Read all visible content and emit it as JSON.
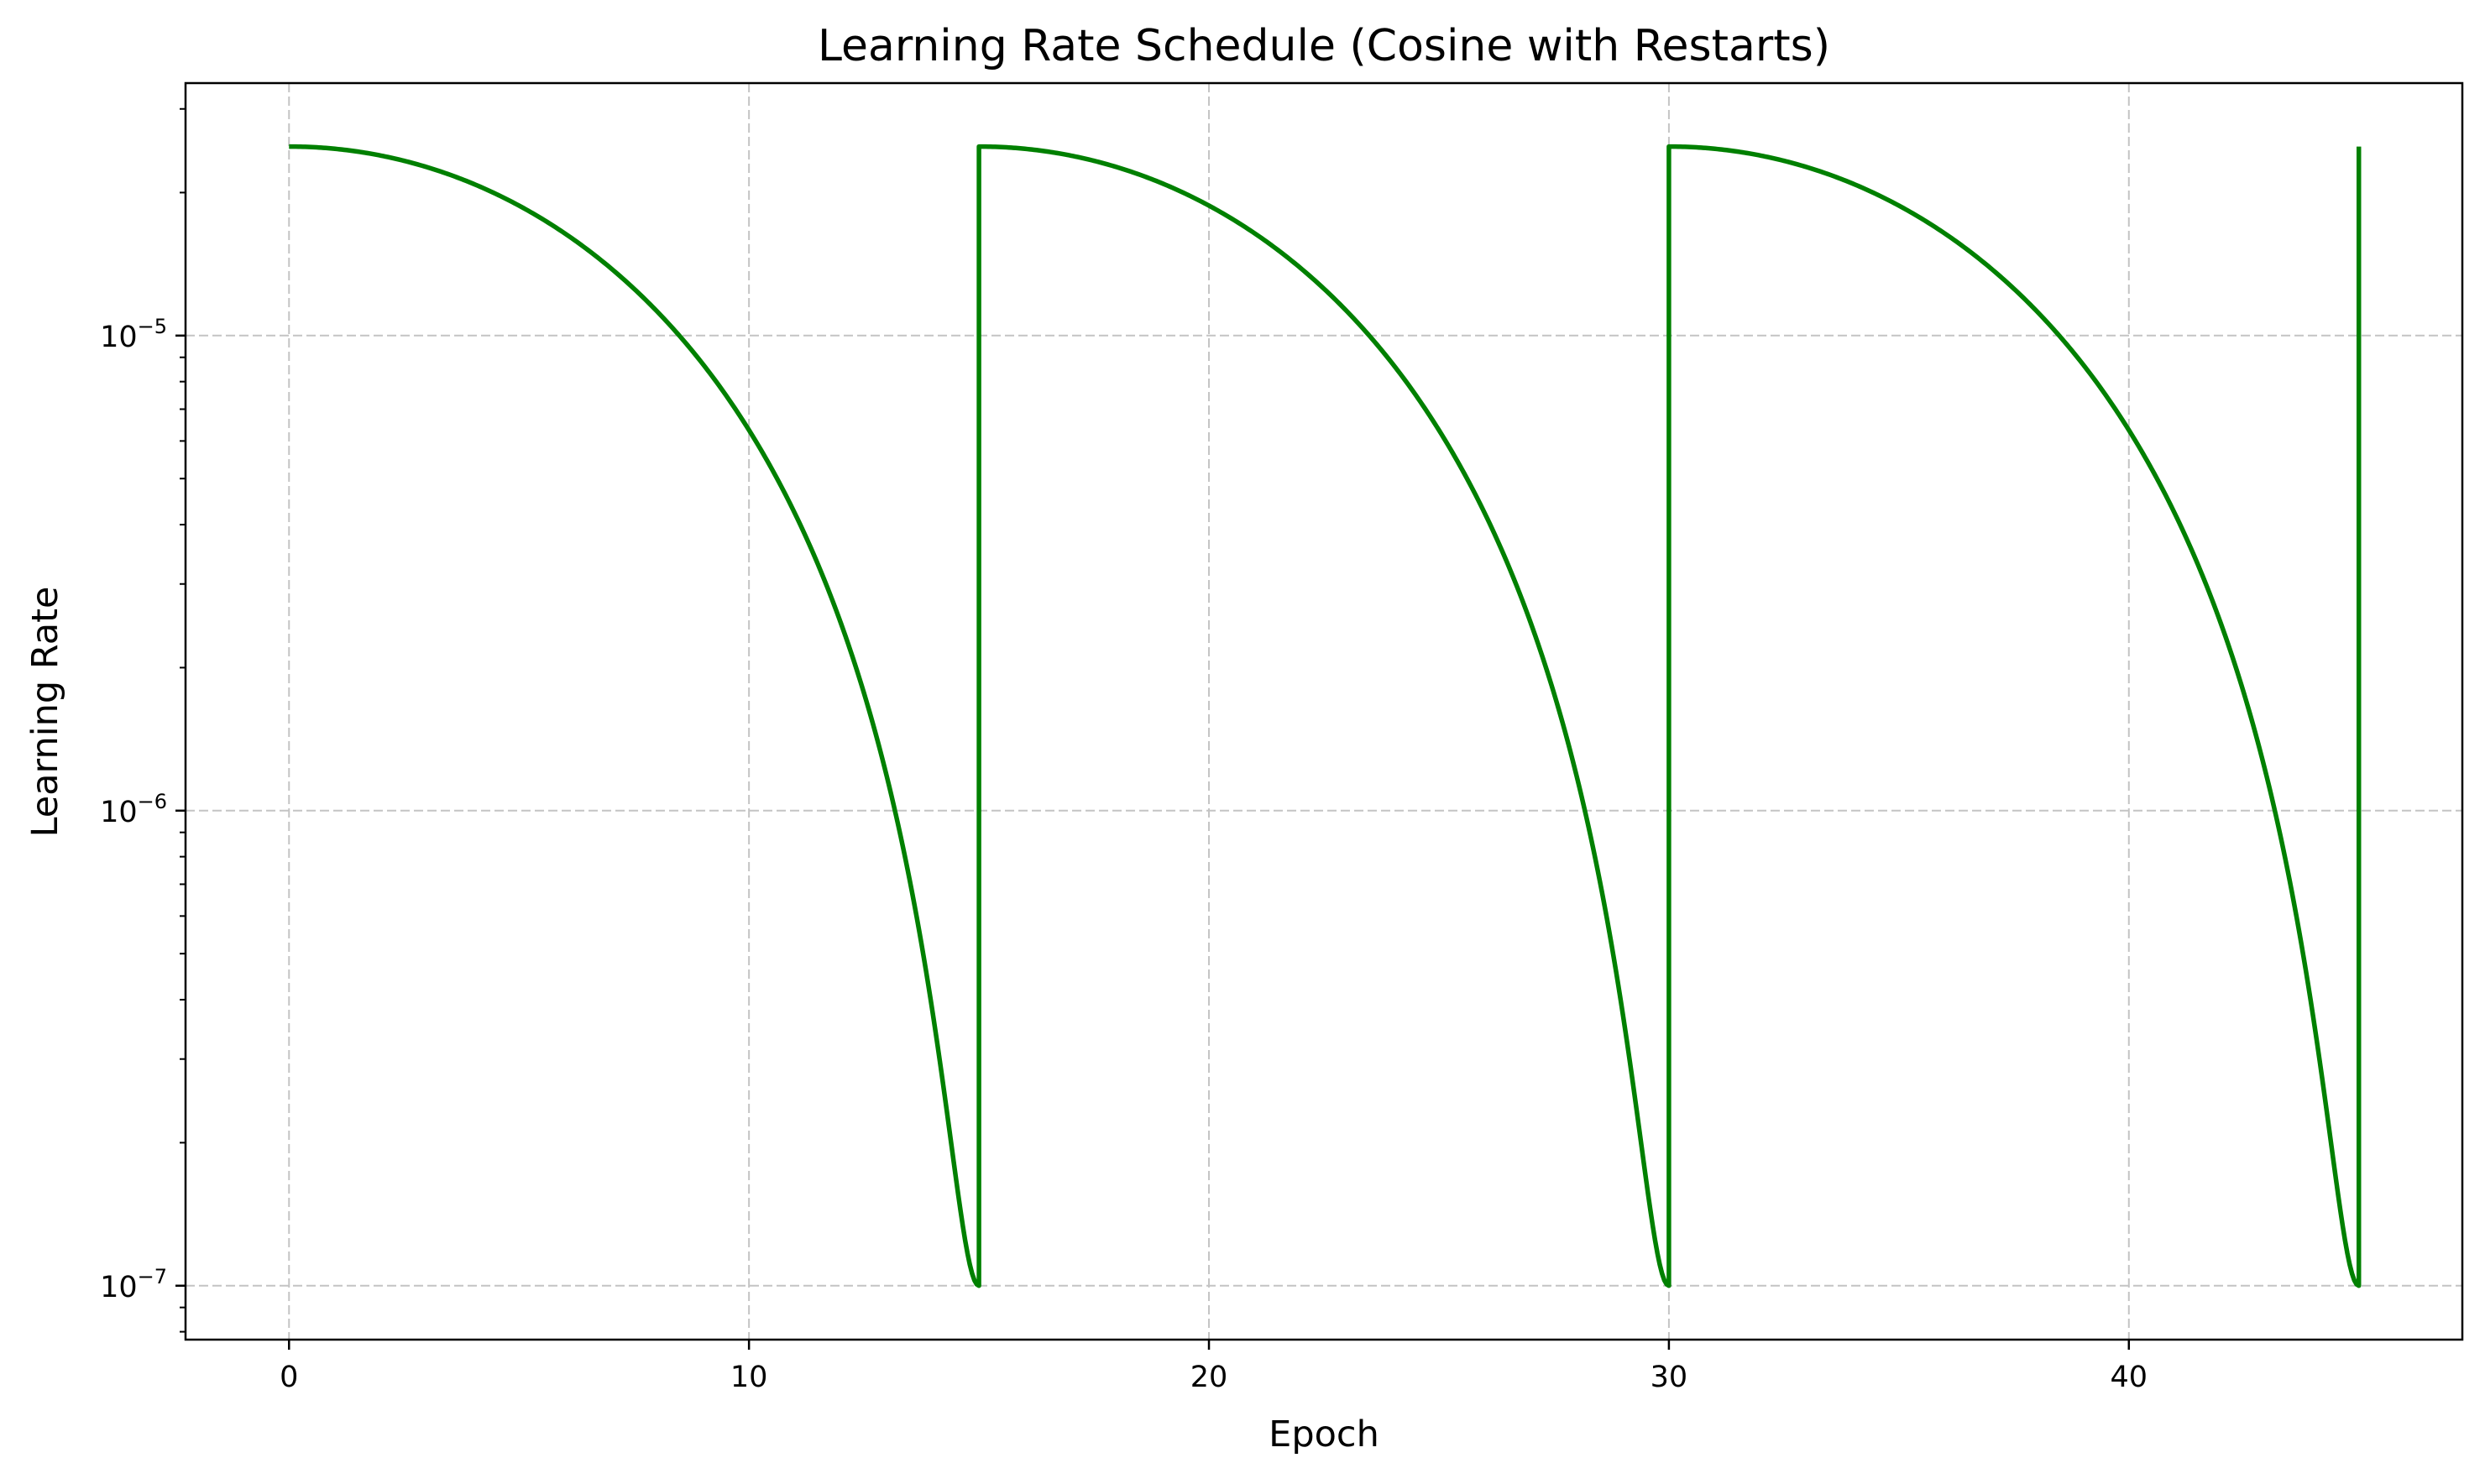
{
  "chart_data": {
    "type": "line",
    "title": "Learning Rate Schedule (Cosine with Restarts)",
    "xlabel": "Epoch",
    "ylabel": "Learning Rate",
    "x_scale": "linear",
    "y_scale": "log",
    "xlim": [
      -2.25,
      47.25
    ],
    "ylim": [
      7.7e-08,
      3.4e-05
    ],
    "x_ticks": [
      0,
      10,
      20,
      30,
      40
    ],
    "x_tick_labels": [
      "0",
      "10",
      "20",
      "30",
      "40"
    ],
    "y_ticks": [
      1e-07,
      1e-06,
      1e-05
    ],
    "y_tick_labels": [
      {
        "base": "10",
        "exp": "−7"
      },
      {
        "base": "10",
        "exp": "−6"
      },
      {
        "base": "10",
        "exp": "−5"
      }
    ],
    "grid": true,
    "legend": null,
    "series": [
      {
        "color": "#008000",
        "schedule": "cosine_with_restarts",
        "lr_max": 2.5e-05,
        "lr_min": 1e-07,
        "cycle_length_epochs": 15,
        "restart_epochs": [
          15,
          30,
          45
        ],
        "x_end": 45,
        "points": [
          [
            0,
            2.5e-05
          ],
          [
            2,
            2.44e-05
          ],
          [
            4,
            2.26e-05
          ],
          [
            6,
            1.98e-05
          ],
          [
            7.5,
            1.755e-05
          ],
          [
            9,
            1.32e-05
          ],
          [
            10,
            6.5e-06
          ],
          [
            11,
            4.56e-06
          ],
          [
            12,
            2.68e-06
          ],
          [
            13,
            1.19e-06
          ],
          [
            14,
            4.1e-07
          ],
          [
            15,
            1e-07
          ],
          [
            15,
            2.5e-05
          ],
          [
            17,
            2.44e-05
          ],
          [
            19,
            2.26e-05
          ],
          [
            21,
            1.98e-05
          ],
          [
            22.5,
            1.755e-05
          ],
          [
            24,
            1.32e-05
          ],
          [
            25,
            6.5e-06
          ],
          [
            26,
            4.56e-06
          ],
          [
            27,
            2.68e-06
          ],
          [
            28,
            1.19e-06
          ],
          [
            29,
            4.1e-07
          ],
          [
            30,
            1e-07
          ],
          [
            30,
            2.5e-05
          ],
          [
            32,
            2.44e-05
          ],
          [
            34,
            2.26e-05
          ],
          [
            36,
            1.98e-05
          ],
          [
            37.5,
            1.755e-05
          ],
          [
            39,
            1.32e-05
          ],
          [
            40,
            6.5e-06
          ],
          [
            41,
            4.56e-06
          ],
          [
            42,
            2.68e-06
          ],
          [
            43,
            1.19e-06
          ],
          [
            44,
            4.1e-07
          ],
          [
            45,
            1e-07
          ],
          [
            45,
            2.5e-05
          ]
        ]
      }
    ]
  }
}
